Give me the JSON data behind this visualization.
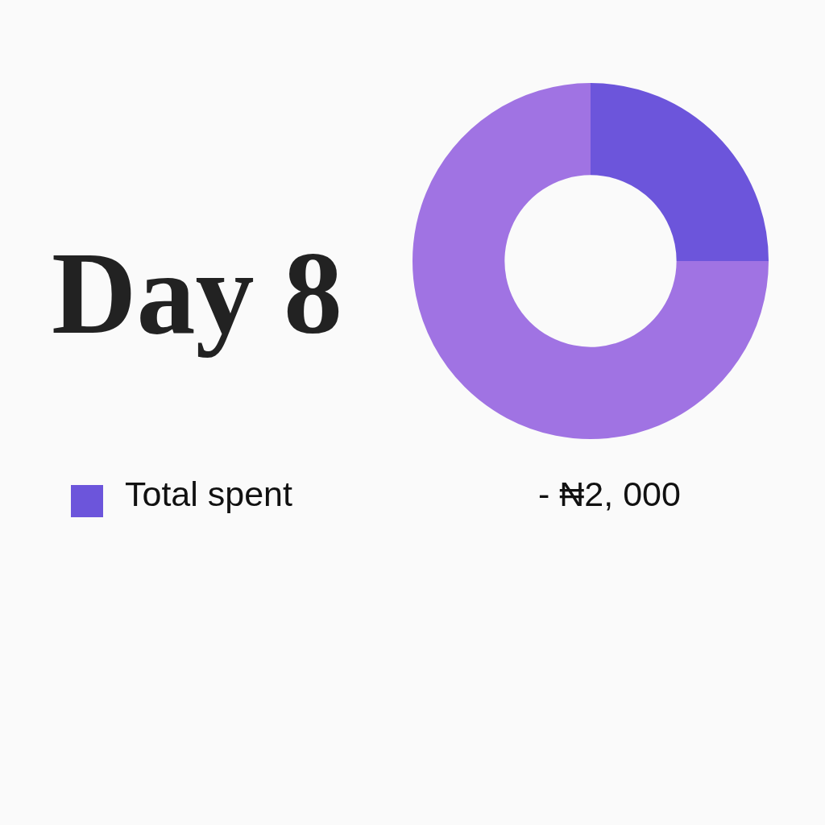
{
  "chart_data": {
    "type": "donut",
    "title": "Day 8",
    "categories": [
      "Total spent",
      null
    ],
    "values": [
      25,
      75
    ],
    "colors": [
      "#6c55db",
      "#a073e3"
    ],
    "legend": "bottom left",
    "annotations": [
      "- ₦2, 000"
    ]
  }
}
